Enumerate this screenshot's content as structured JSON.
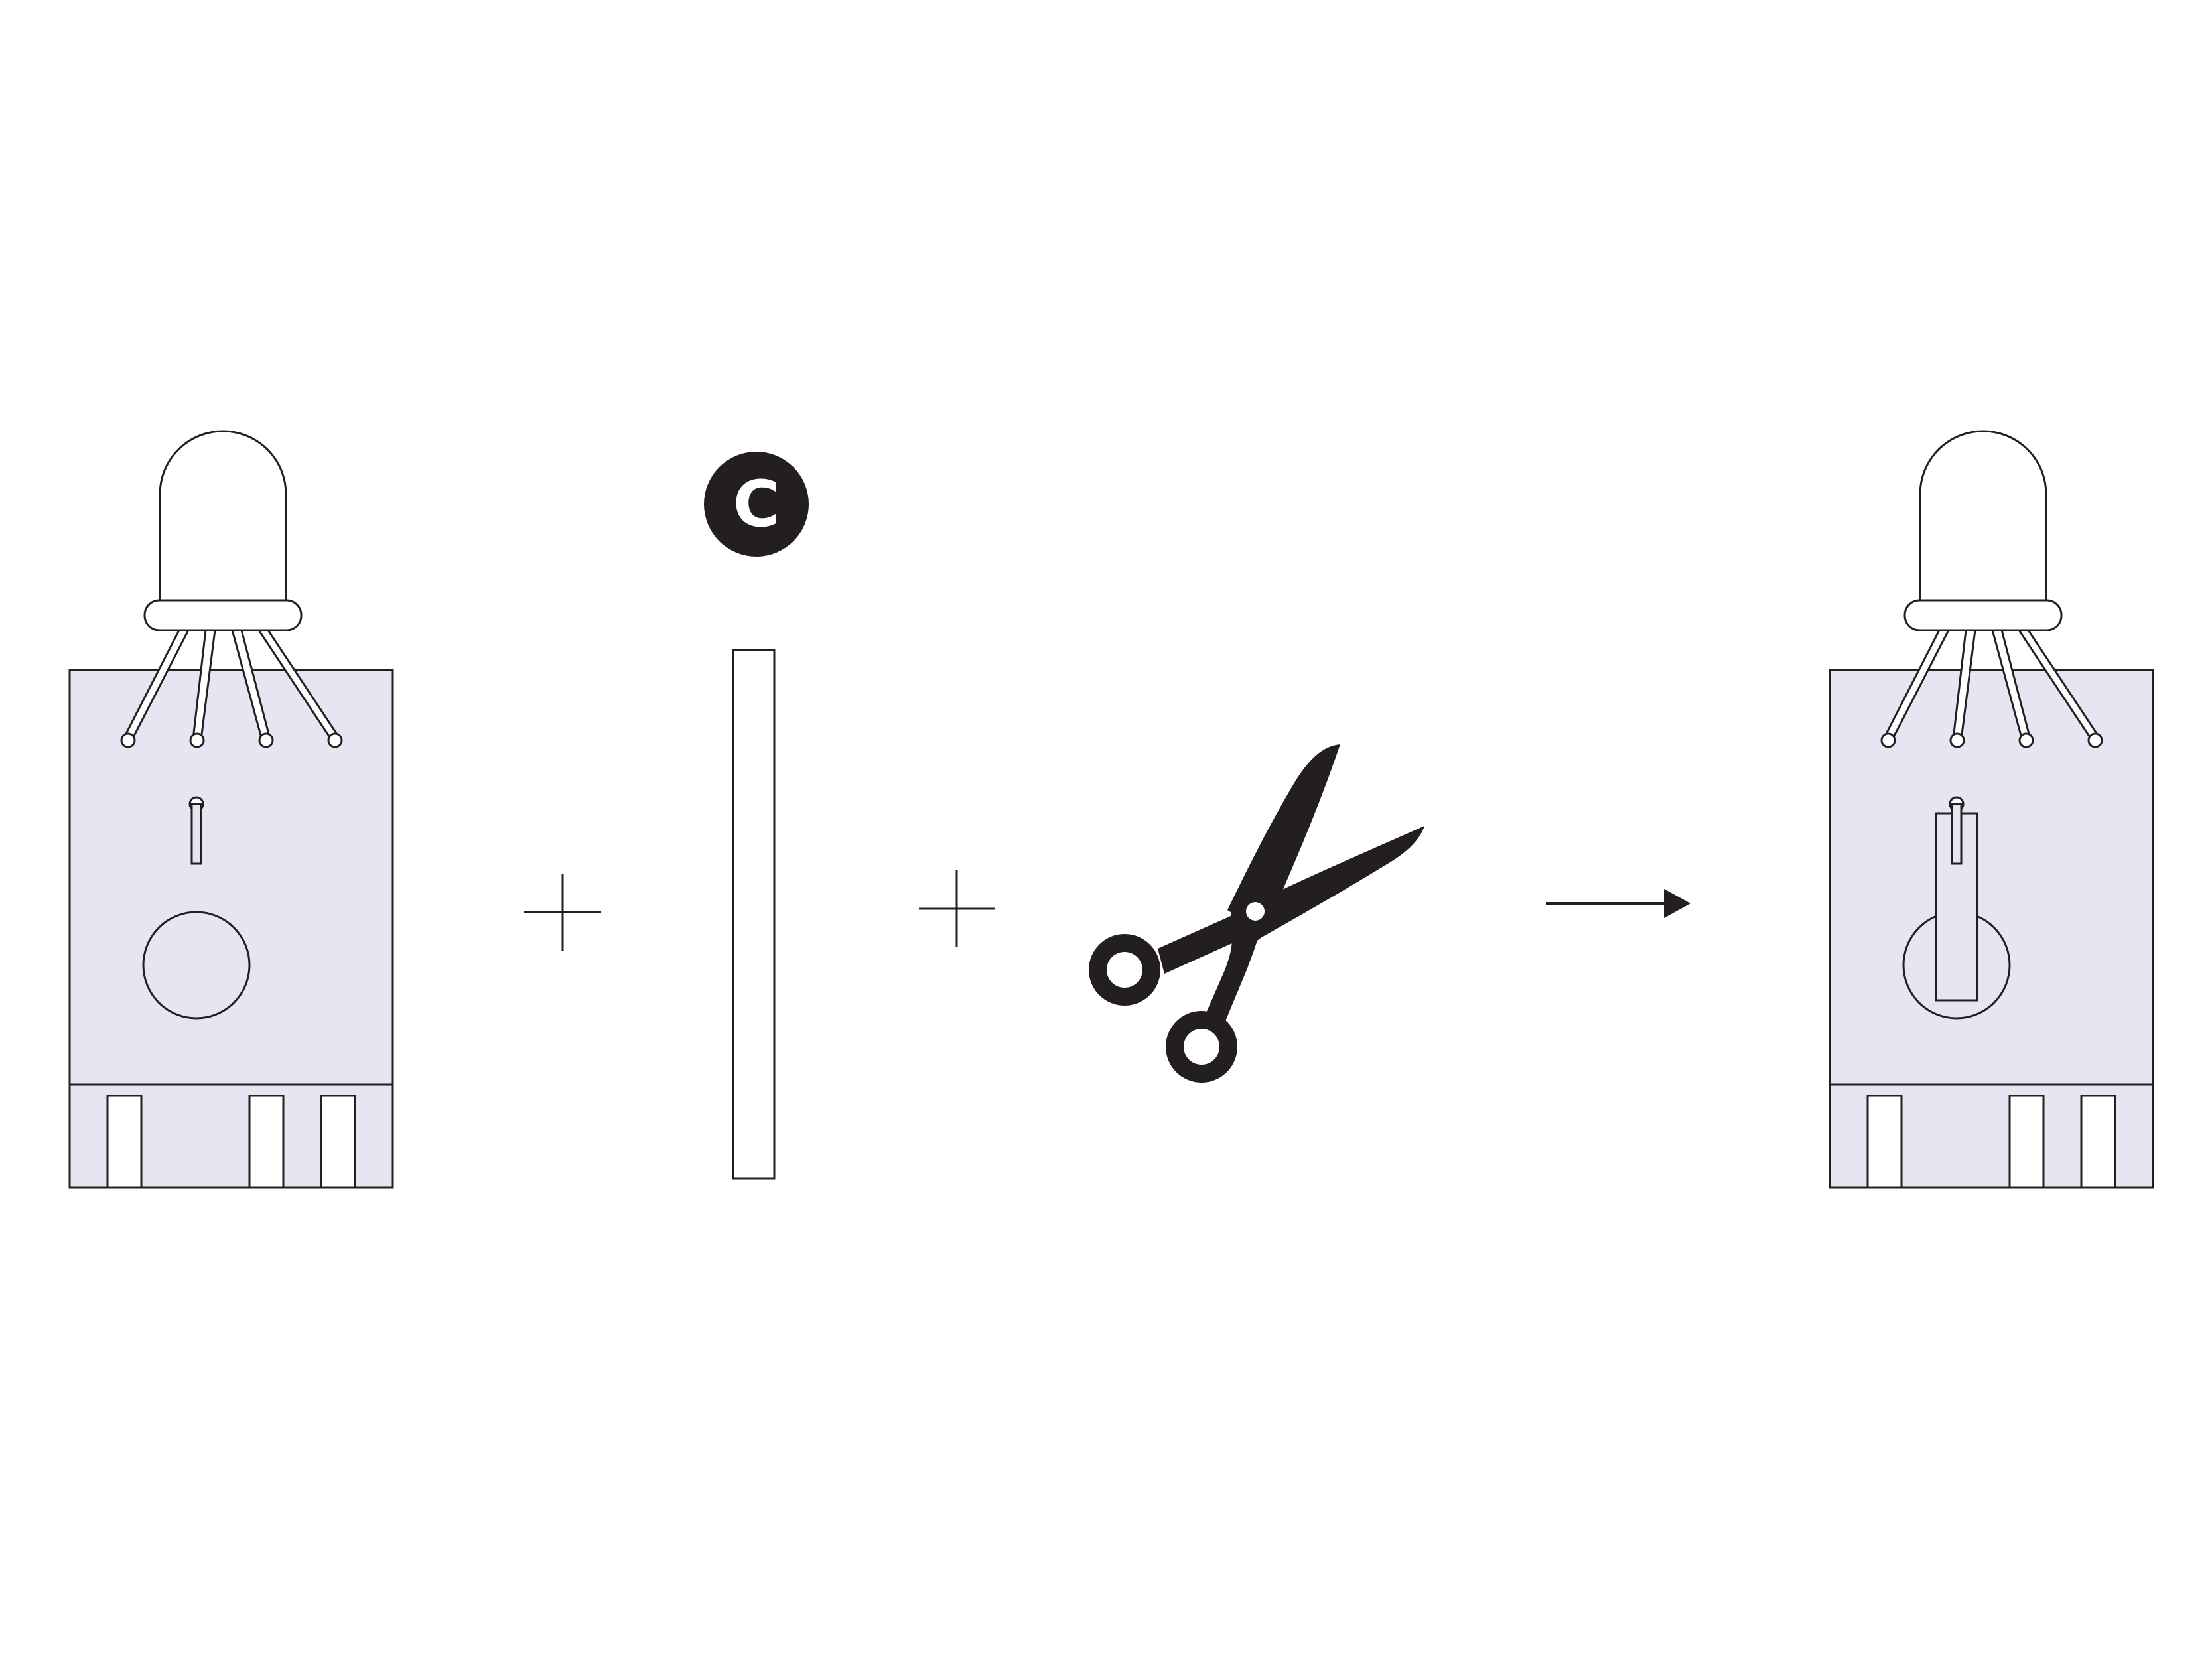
{
  "diagram": {
    "type": "assembly-instruction",
    "colors": {
      "board_fill": "#e6e6f2",
      "stroke": "#231f20",
      "badge_fill": "#231f20",
      "badge_text": "#ffffff",
      "background": "#ffffff"
    },
    "step_items": [
      {
        "name": "board-with-led",
        "icon": "led-board-icon"
      },
      {
        "name": "plus",
        "icon": "plus-icon"
      },
      {
        "name": "strip-part",
        "icon": "strip-icon",
        "badge_label": "C"
      },
      {
        "name": "plus",
        "icon": "plus-icon"
      },
      {
        "name": "scissors",
        "icon": "scissors-icon"
      },
      {
        "name": "arrow",
        "icon": "arrow-right-icon"
      },
      {
        "name": "board-with-strip",
        "icon": "led-board-strip-icon"
      }
    ],
    "part_badge": {
      "label": "C"
    }
  }
}
